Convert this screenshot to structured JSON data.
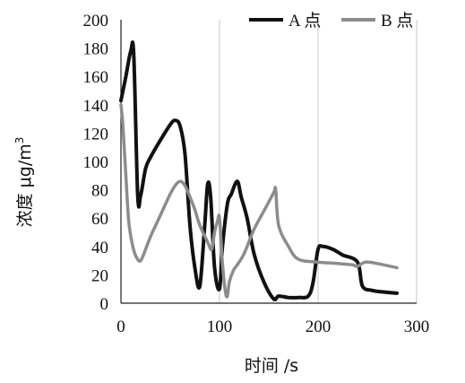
{
  "chart_data": {
    "type": "line",
    "xlabel": "时间 /s",
    "ylabel": "浓度 μg/m³",
    "ylabel_base": "浓度 μg/m",
    "ylabel_sup": "3",
    "xlim": [
      0,
      300
    ],
    "ylim": [
      0,
      200
    ],
    "xticks": [
      0,
      100,
      200,
      300
    ],
    "yticks": [
      0,
      20,
      40,
      60,
      80,
      100,
      120,
      140,
      160,
      180,
      200
    ],
    "grid": "vertical",
    "legend_position": "top-right",
    "series": [
      {
        "name": "A 点",
        "color": "#111111",
        "x": [
          0,
          5,
          10,
          13,
          17,
          20,
          25,
          30,
          40,
          50,
          55,
          60,
          65,
          70,
          75,
          80,
          85,
          88,
          91,
          95,
          100,
          103,
          108,
          112,
          118,
          122,
          128,
          135,
          145,
          155,
          160,
          170,
          180,
          190,
          195,
          200,
          205,
          215,
          225,
          240,
          245,
          255,
          265,
          280
        ],
        "y": [
          143,
          160,
          178,
          175,
          76,
          76,
          95,
          103,
          115,
          126,
          129,
          125,
          105,
          55,
          25,
          12,
          55,
          84,
          75,
          25,
          10,
          40,
          70,
          77,
          86,
          75,
          60,
          35,
          15,
          3,
          5,
          4,
          4,
          5,
          15,
          38,
          40,
          38,
          34,
          29,
          12,
          9,
          8,
          7
        ]
      },
      {
        "name": "B 点",
        "color": "#8c8c8c",
        "x": [
          0,
          2,
          5,
          8,
          12,
          16,
          20,
          25,
          30,
          40,
          50,
          55,
          60,
          65,
          70,
          75,
          80,
          88,
          92,
          95,
          98,
          100,
          103,
          106,
          108,
          110,
          114,
          118,
          125,
          135,
          145,
          155,
          157,
          160,
          170,
          180,
          200,
          220,
          235,
          240,
          248,
          260,
          280
        ],
        "y": [
          140,
          125,
          90,
          57,
          40,
          32,
          30,
          38,
          47,
          62,
          77,
          83,
          86,
          83,
          75,
          66,
          55,
          43,
          38,
          50,
          58,
          60,
          28,
          8,
          5,
          15,
          23,
          27,
          35,
          52,
          65,
          78,
          80,
          55,
          40,
          31,
          29,
          28,
          27,
          26,
          29,
          28,
          25
        ]
      }
    ]
  }
}
